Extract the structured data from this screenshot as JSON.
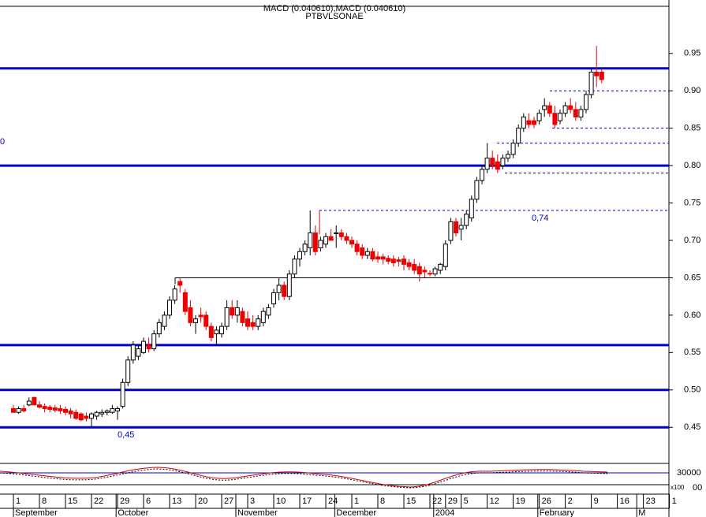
{
  "chart_data": {
    "type": "candlestick",
    "title": "MACD (0.040610),MACD (0.040610)",
    "subtitle": "PTBVLSONAE",
    "categories": [
      "1",
      null,
      null,
      null,
      null,
      "8",
      null,
      null,
      null,
      null,
      "15",
      null,
      null,
      null,
      null,
      "22",
      null,
      null,
      null,
      null,
      "29",
      null,
      null,
      null,
      null,
      "6",
      null,
      null,
      null,
      null,
      "13",
      null,
      null,
      null,
      null,
      "20",
      null,
      null,
      null,
      null,
      "27",
      null,
      null,
      null,
      null,
      "3",
      null,
      null,
      null,
      null,
      "10",
      null,
      null,
      null,
      null,
      "17",
      null,
      null,
      null,
      null,
      "24",
      null,
      null,
      null,
      null,
      "1",
      null,
      null,
      null,
      null,
      "8",
      null,
      null,
      null,
      null,
      "15",
      null,
      null,
      null,
      null,
      "22",
      null,
      null,
      "29",
      null,
      null,
      "5",
      null,
      null,
      null,
      null,
      "12",
      null,
      null,
      null,
      null,
      "19",
      null,
      null,
      null,
      null,
      "26",
      null,
      null,
      null,
      null,
      "2",
      null,
      null,
      null,
      null,
      "9",
      null,
      null,
      null,
      null,
      "16",
      null,
      null,
      null,
      null,
      "23",
      null,
      null,
      null,
      null,
      "1"
    ],
    "month_labels": [
      "September",
      null,
      null,
      null,
      null,
      null,
      null,
      null,
      null,
      null,
      null,
      null,
      null,
      null,
      null,
      null,
      null,
      null,
      null,
      null,
      null,
      null,
      "October",
      null,
      null,
      null,
      null,
      null,
      null,
      null,
      null,
      null,
      null,
      null,
      null,
      null,
      null,
      null,
      null,
      null,
      null,
      null,
      null,
      null,
      null,
      "November",
      null,
      null,
      null,
      null,
      null,
      null,
      null,
      null,
      null,
      null,
      null,
      null,
      null,
      null,
      null,
      null,
      null,
      null,
      "December",
      null,
      null,
      null,
      null,
      null,
      null,
      null,
      null,
      null,
      null,
      null,
      null,
      null,
      null,
      null,
      null,
      null,
      null,
      "2004",
      null,
      null,
      null,
      null,
      null,
      null,
      null,
      null,
      null,
      null,
      null,
      null,
      null,
      null,
      null,
      null,
      null,
      null,
      null,
      "February",
      null,
      null,
      null,
      null,
      null,
      null,
      null,
      null,
      null,
      null,
      null,
      null,
      null,
      null,
      null,
      null,
      null,
      null,
      "M"
    ],
    "open": [
      0.475,
      0.47,
      0.475,
      0.48,
      0.49,
      0.48,
      0.478,
      0.477,
      0.476,
      0.475,
      0.474,
      0.472,
      0.47,
      0.468,
      0.465,
      0.462,
      0.465,
      0.468,
      0.47,
      0.47,
      0.472,
      0.478,
      0.51,
      0.54,
      0.545,
      0.55,
      0.56,
      0.555,
      0.575,
      0.585,
      0.6,
      0.62,
      0.645,
      0.63,
      0.61,
      0.59,
      0.6,
      0.6,
      0.585,
      0.575,
      0.575,
      0.585,
      0.61,
      0.6,
      0.605,
      0.595,
      0.59,
      0.585,
      0.59,
      0.6,
      0.615,
      0.63,
      0.64,
      0.625,
      0.655,
      0.675,
      0.685,
      0.69,
      0.71,
      0.69,
      0.695,
      0.705,
      0.71,
      0.71,
      0.705,
      0.7,
      0.695,
      0.69,
      0.68,
      0.685,
      0.678,
      0.678,
      0.676,
      0.675,
      0.674,
      0.675,
      0.67,
      0.668,
      0.665,
      0.66,
      0.656,
      0.655,
      0.66,
      0.665,
      0.7,
      0.725,
      0.715,
      0.72,
      0.73,
      0.755,
      0.78,
      0.795,
      0.81,
      0.805,
      0.8,
      0.81,
      0.815,
      0.83,
      0.85,
      0.86,
      0.86,
      0.86,
      0.875,
      0.88,
      0.87,
      0.86,
      0.87,
      0.88,
      0.875,
      0.865,
      0.875,
      0.895,
      0.925,
      0.925,
      null,
      null,
      null,
      null,
      null,
      null,
      null,
      null,
      null,
      null,
      null,
      null,
      null
    ],
    "high": [
      0.48,
      0.478,
      0.48,
      0.49,
      0.49,
      0.485,
      0.482,
      0.48,
      0.48,
      0.48,
      0.478,
      0.476,
      0.474,
      0.47,
      0.47,
      0.47,
      0.472,
      0.474,
      0.474,
      0.48,
      0.478,
      0.515,
      0.545,
      0.565,
      0.56,
      0.57,
      0.57,
      0.58,
      0.595,
      0.605,
      0.625,
      0.64,
      0.65,
      0.635,
      0.62,
      0.6,
      0.61,
      0.605,
      0.59,
      0.585,
      0.59,
      0.62,
      0.62,
      0.62,
      0.61,
      0.605,
      0.6,
      0.6,
      0.61,
      0.615,
      0.635,
      0.65,
      0.645,
      0.66,
      0.68,
      0.69,
      0.7,
      0.74,
      0.72,
      0.705,
      0.71,
      0.715,
      0.72,
      0.715,
      0.71,
      0.705,
      0.7,
      0.695,
      0.69,
      0.69,
      0.685,
      0.682,
      0.68,
      0.68,
      0.678,
      0.68,
      0.675,
      0.675,
      0.67,
      0.665,
      0.66,
      0.665,
      0.67,
      0.7,
      0.73,
      0.73,
      0.73,
      0.74,
      0.76,
      0.785,
      0.8,
      0.83,
      0.82,
      0.815,
      0.815,
      0.82,
      0.835,
      0.855,
      0.87,
      0.87,
      0.865,
      0.875,
      0.89,
      0.885,
      0.88,
      0.875,
      0.885,
      0.89,
      0.885,
      0.88,
      0.9,
      0.93,
      0.96,
      0.93,
      null,
      null,
      null,
      null,
      null,
      null,
      null,
      null,
      null,
      null,
      null,
      null,
      null
    ],
    "low": [
      0.47,
      0.468,
      0.47,
      0.478,
      0.48,
      0.475,
      0.47,
      0.47,
      0.47,
      0.468,
      0.466,
      0.462,
      0.46,
      0.458,
      0.458,
      0.45,
      0.46,
      0.464,
      0.466,
      0.468,
      0.46,
      0.475,
      0.505,
      0.535,
      0.54,
      0.548,
      0.55,
      0.552,
      0.57,
      0.58,
      0.595,
      0.615,
      0.63,
      0.6,
      0.585,
      0.575,
      0.59,
      0.58,
      0.565,
      0.56,
      0.57,
      0.58,
      0.595,
      0.59,
      0.585,
      0.58,
      0.58,
      0.58,
      0.585,
      0.595,
      0.61,
      0.62,
      0.62,
      0.62,
      0.65,
      0.665,
      0.68,
      0.68,
      0.68,
      0.685,
      0.69,
      0.7,
      0.69,
      0.7,
      0.695,
      0.69,
      0.68,
      0.675,
      0.675,
      0.672,
      0.67,
      0.668,
      0.668,
      0.665,
      0.665,
      0.66,
      0.66,
      0.655,
      0.645,
      0.65,
      0.652,
      0.652,
      0.655,
      0.66,
      0.695,
      0.705,
      0.7,
      0.715,
      0.725,
      0.75,
      0.775,
      0.79,
      0.795,
      0.79,
      0.795,
      0.805,
      0.81,
      0.825,
      0.845,
      0.85,
      0.85,
      0.855,
      0.865,
      0.865,
      0.85,
      0.855,
      0.865,
      0.87,
      0.86,
      0.86,
      0.87,
      0.89,
      0.905,
      0.91,
      null,
      null,
      null,
      null,
      null,
      null,
      null,
      null,
      null,
      null,
      null,
      null,
      null
    ],
    "close": [
      0.47,
      0.475,
      0.472,
      0.485,
      0.48,
      0.477,
      0.475,
      0.474,
      0.473,
      0.472,
      0.47,
      0.468,
      0.462,
      0.46,
      0.462,
      0.468,
      0.47,
      0.47,
      0.472,
      0.475,
      0.475,
      0.51,
      0.54,
      0.56,
      0.555,
      0.565,
      0.555,
      0.575,
      0.59,
      0.6,
      0.62,
      0.635,
      0.64,
      0.605,
      0.59,
      0.595,
      0.598,
      0.585,
      0.57,
      0.58,
      0.585,
      0.61,
      0.6,
      0.61,
      0.59,
      0.585,
      0.585,
      0.595,
      0.605,
      0.61,
      0.63,
      0.64,
      0.625,
      0.655,
      0.675,
      0.685,
      0.695,
      0.71,
      0.685,
      0.7,
      0.705,
      0.7,
      0.71,
      0.705,
      0.7,
      0.695,
      0.685,
      0.68,
      0.685,
      0.675,
      0.675,
      0.675,
      0.672,
      0.67,
      0.672,
      0.668,
      0.665,
      0.66,
      0.655,
      0.658,
      0.655,
      0.662,
      0.668,
      0.695,
      0.725,
      0.71,
      0.72,
      0.735,
      0.755,
      0.78,
      0.795,
      0.81,
      0.8,
      0.795,
      0.81,
      0.815,
      0.83,
      0.85,
      0.865,
      0.855,
      0.855,
      0.87,
      0.88,
      0.87,
      0.855,
      0.87,
      0.88,
      0.875,
      0.865,
      0.875,
      0.895,
      0.925,
      0.92,
      0.915,
      null,
      null,
      null,
      null,
      null,
      null,
      null,
      null,
      null,
      null,
      null,
      null,
      null
    ],
    "up_color": "#ffffff",
    "down_color": "#ee0000",
    "ylim": [
      0.426,
      1.013
    ],
    "yticks": [
      0.45,
      {
        "value": 0.5,
        "label": "0.50"
      },
      0.55,
      {
        "value": 0.6,
        "label": "0.60"
      },
      0.65,
      {
        "value": 0.7,
        "label": "0.70"
      },
      0.75,
      {
        "value": 0.8,
        "label": "0.80"
      },
      0.85,
      {
        "value": 0.9,
        "label": "0.90"
      },
      0.95
    ],
    "levels": [
      0.93,
      0.8,
      0.56,
      0.5,
      0.45
    ],
    "level_color": "#0000cc",
    "targets": [
      0.9,
      0.85,
      0.83,
      0.79,
      0.74
    ],
    "support": [
      0.65
    ],
    "annotations": [
      {
        "value": 0.74,
        "label": "0,74"
      },
      {
        "value": 0.45,
        "label": "0,45"
      }
    ],
    "edge_label": "0",
    "lower_panel_labels": [
      "30000",
      "00",
      "x100"
    ]
  }
}
